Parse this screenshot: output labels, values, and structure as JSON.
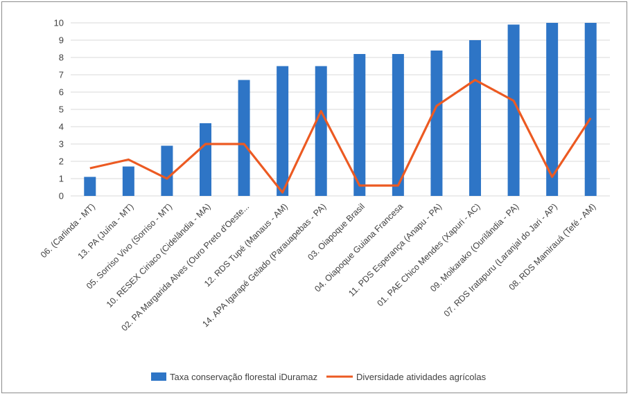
{
  "chart_data": {
    "type": "bar",
    "categories": [
      "06. (Carlinda - MT)",
      "13. PA (Juína - MT)",
      "05. Sorriso Vivo (Sorriso - MT)",
      "10. RESEX Ciriaco (Cidelândia - MA)",
      "02. PA Margarida Alves (Ouro Preto d'Oeste...",
      "12. RDS Tupé (Manaus - AM)",
      "14. APA Igarapé Gelado (Parauapebas - PA)",
      "03. Oiapoque Brasil",
      "04. Oiapoque Guiana Francesa",
      "11. PDS Esperança (Anapu - PA)",
      "01. PAE Chico Mendes (Xapuri - AC)",
      "09. Moikarako (Ourilândia - PA)",
      "07. RDS Iratapuru (Laranjal do Jari - AP)",
      "08. RDS Mamirauá (Tefé - AM)"
    ],
    "series": [
      {
        "name": "Taxa conservação florestal iDuramaz",
        "type": "bar",
        "color": "#2e75c6",
        "values": [
          1.1,
          1.7,
          2.9,
          4.2,
          6.7,
          7.5,
          7.5,
          8.2,
          8.2,
          8.4,
          9.0,
          9.9,
          10.0,
          10.0
        ]
      },
      {
        "name": "Diversidade atividades agrícolas",
        "type": "line",
        "color": "#ec5a22",
        "values": [
          1.6,
          2.1,
          1.0,
          3.0,
          3.0,
          0.2,
          4.9,
          0.6,
          0.6,
          5.2,
          6.7,
          5.5,
          1.1,
          4.5
        ]
      }
    ],
    "yticks": [
      "0",
      "1",
      "2",
      "3",
      "4",
      "5",
      "6",
      "7",
      "8",
      "9",
      "10"
    ],
    "ylim": [
      0,
      10
    ],
    "grid": true,
    "legend": "bottom",
    "title": "",
    "xlabel": "",
    "ylabel": ""
  }
}
